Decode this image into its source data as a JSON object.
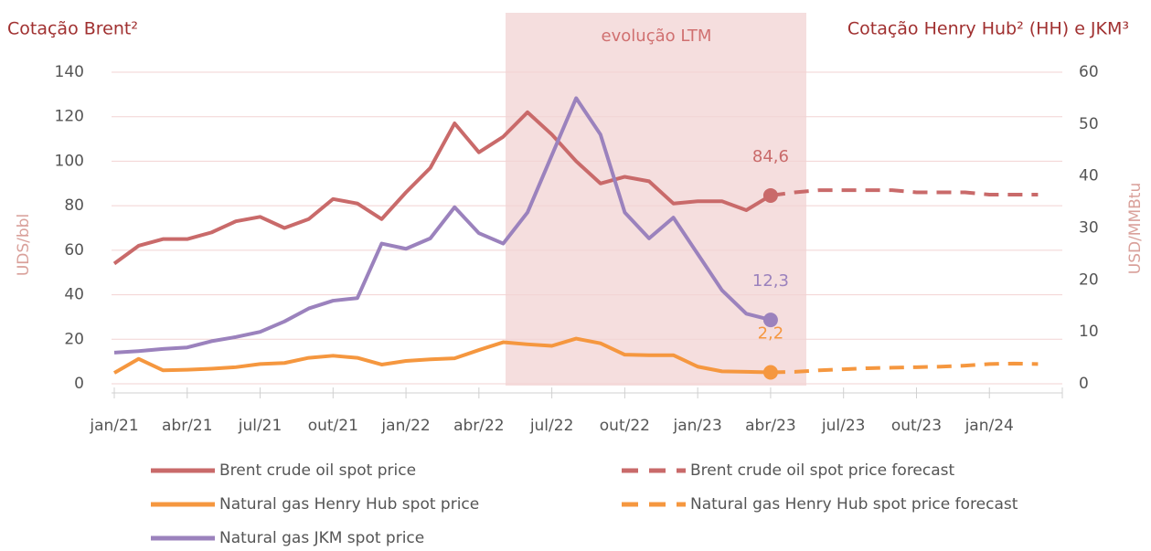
{
  "chart_data": {
    "type": "line",
    "title": "Cotação Brent²",
    "title_right": "Cotação Henry Hub² (HH) e JKM³",
    "annotation": "evolução LTM",
    "y_label": "UDS/bbl",
    "y2_label": "USD/MMBtu",
    "categories": [
      "jan/21",
      null,
      null,
      "abr/21",
      null,
      null,
      "jul/21",
      null,
      null,
      "out/21",
      null,
      null,
      "jan/22",
      null,
      null,
      "abr/22",
      null,
      null,
      "jul/22",
      null,
      null,
      "out/22",
      null,
      null,
      "jan/23",
      null,
      null,
      "abr/23",
      null,
      null,
      "jul/23",
      null,
      null,
      "out/23",
      null,
      null,
      "jan/24",
      null,
      null,
      null
    ],
    "ylim": [
      0,
      140
    ],
    "yticks": [
      0,
      20,
      40,
      60,
      80,
      100,
      120,
      140
    ],
    "y2lim": [
      0,
      60
    ],
    "y2ticks": [
      0,
      10,
      20,
      30,
      40,
      50,
      60
    ],
    "grid": true,
    "series": [
      {
        "name": "Brent crude oil spot price",
        "color": "#c96a6a",
        "style": "solid",
        "values": [
          54,
          62,
          65,
          65,
          68,
          73,
          75,
          70,
          74,
          83,
          81,
          74,
          86,
          97,
          117,
          104,
          111,
          122,
          112,
          100,
          90,
          93,
          91,
          81,
          82,
          82,
          78,
          84.6,
          null,
          null,
          null,
          null,
          null,
          null,
          null,
          null,
          null,
          null,
          null,
          null
        ],
        "value_labels": [
          null,
          null,
          null,
          null,
          null,
          null,
          null,
          null,
          null,
          null,
          null,
          null,
          null,
          null,
          null,
          null,
          null,
          null,
          null,
          null,
          null,
          null,
          null,
          null,
          null,
          null,
          null,
          "84,6",
          null,
          null,
          null,
          null,
          null,
          null,
          null,
          null,
          null,
          null,
          null,
          null
        ]
      },
      {
        "name": "Brent crude oil spot price forecast",
        "color": "#c96a6a",
        "style": "dashed",
        "values": [
          null,
          null,
          null,
          null,
          null,
          null,
          null,
          null,
          null,
          null,
          null,
          null,
          null,
          null,
          null,
          null,
          null,
          null,
          null,
          null,
          null,
          null,
          null,
          null,
          null,
          null,
          null,
          84.6,
          86,
          87,
          87,
          87,
          87,
          86,
          86,
          86,
          85,
          85,
          85,
          null
        ]
      },
      {
        "name": "Natural gas Henry Hub spot price",
        "color": "#f5973f",
        "style": "solid",
        "axis": "y2",
        "values": [
          2.1,
          4.8,
          2.6,
          2.7,
          2.9,
          3.2,
          3.8,
          4.0,
          5.0,
          5.4,
          5.0,
          3.7,
          4.4,
          4.7,
          4.9,
          6.5,
          8.0,
          7.6,
          7.3,
          8.7,
          7.8,
          5.6,
          5.5,
          5.5,
          3.3,
          2.4,
          2.3,
          2.2,
          null,
          null,
          null,
          null,
          null,
          null,
          null,
          null,
          null,
          null,
          null,
          null
        ],
        "value_labels": [
          null,
          null,
          null,
          null,
          null,
          null,
          null,
          null,
          null,
          null,
          null,
          null,
          null,
          null,
          null,
          null,
          null,
          null,
          null,
          null,
          null,
          null,
          null,
          null,
          null,
          null,
          null,
          "2,2",
          null,
          null,
          null,
          null,
          null,
          null,
          null,
          null,
          null,
          null,
          null,
          null
        ]
      },
      {
        "name": "Natural gas Henry Hub spot price forecast",
        "color": "#f5973f",
        "style": "dashed",
        "axis": "y2",
        "values": [
          null,
          null,
          null,
          null,
          null,
          null,
          null,
          null,
          null,
          null,
          null,
          null,
          null,
          null,
          null,
          null,
          null,
          null,
          null,
          null,
          null,
          null,
          null,
          null,
          null,
          null,
          null,
          2.2,
          2.3,
          2.6,
          2.8,
          3.0,
          3.1,
          3.2,
          3.3,
          3.5,
          3.8,
          3.9,
          3.8,
          null
        ]
      },
      {
        "name": "Natural gas JKM spot price",
        "color": "#9b82bd",
        "style": "solid",
        "axis": "y2",
        "values": [
          6,
          6.3,
          6.7,
          7.0,
          8.2,
          9.0,
          10,
          12,
          14.5,
          16,
          16.5,
          27,
          26,
          28,
          34,
          29,
          27,
          33,
          44,
          55,
          48,
          33,
          28,
          32,
          25,
          18,
          13.5,
          12.3,
          null,
          null,
          null,
          null,
          null,
          null,
          null,
          null,
          null,
          null,
          null,
          null
        ],
        "value_labels": [
          null,
          null,
          null,
          null,
          null,
          null,
          null,
          null,
          null,
          null,
          null,
          null,
          null,
          null,
          null,
          null,
          null,
          null,
          null,
          null,
          null,
          null,
          null,
          null,
          null,
          null,
          null,
          "12,3",
          null,
          null,
          null,
          null,
          null,
          null,
          null,
          null,
          null,
          null,
          null,
          null
        ]
      }
    ]
  }
}
